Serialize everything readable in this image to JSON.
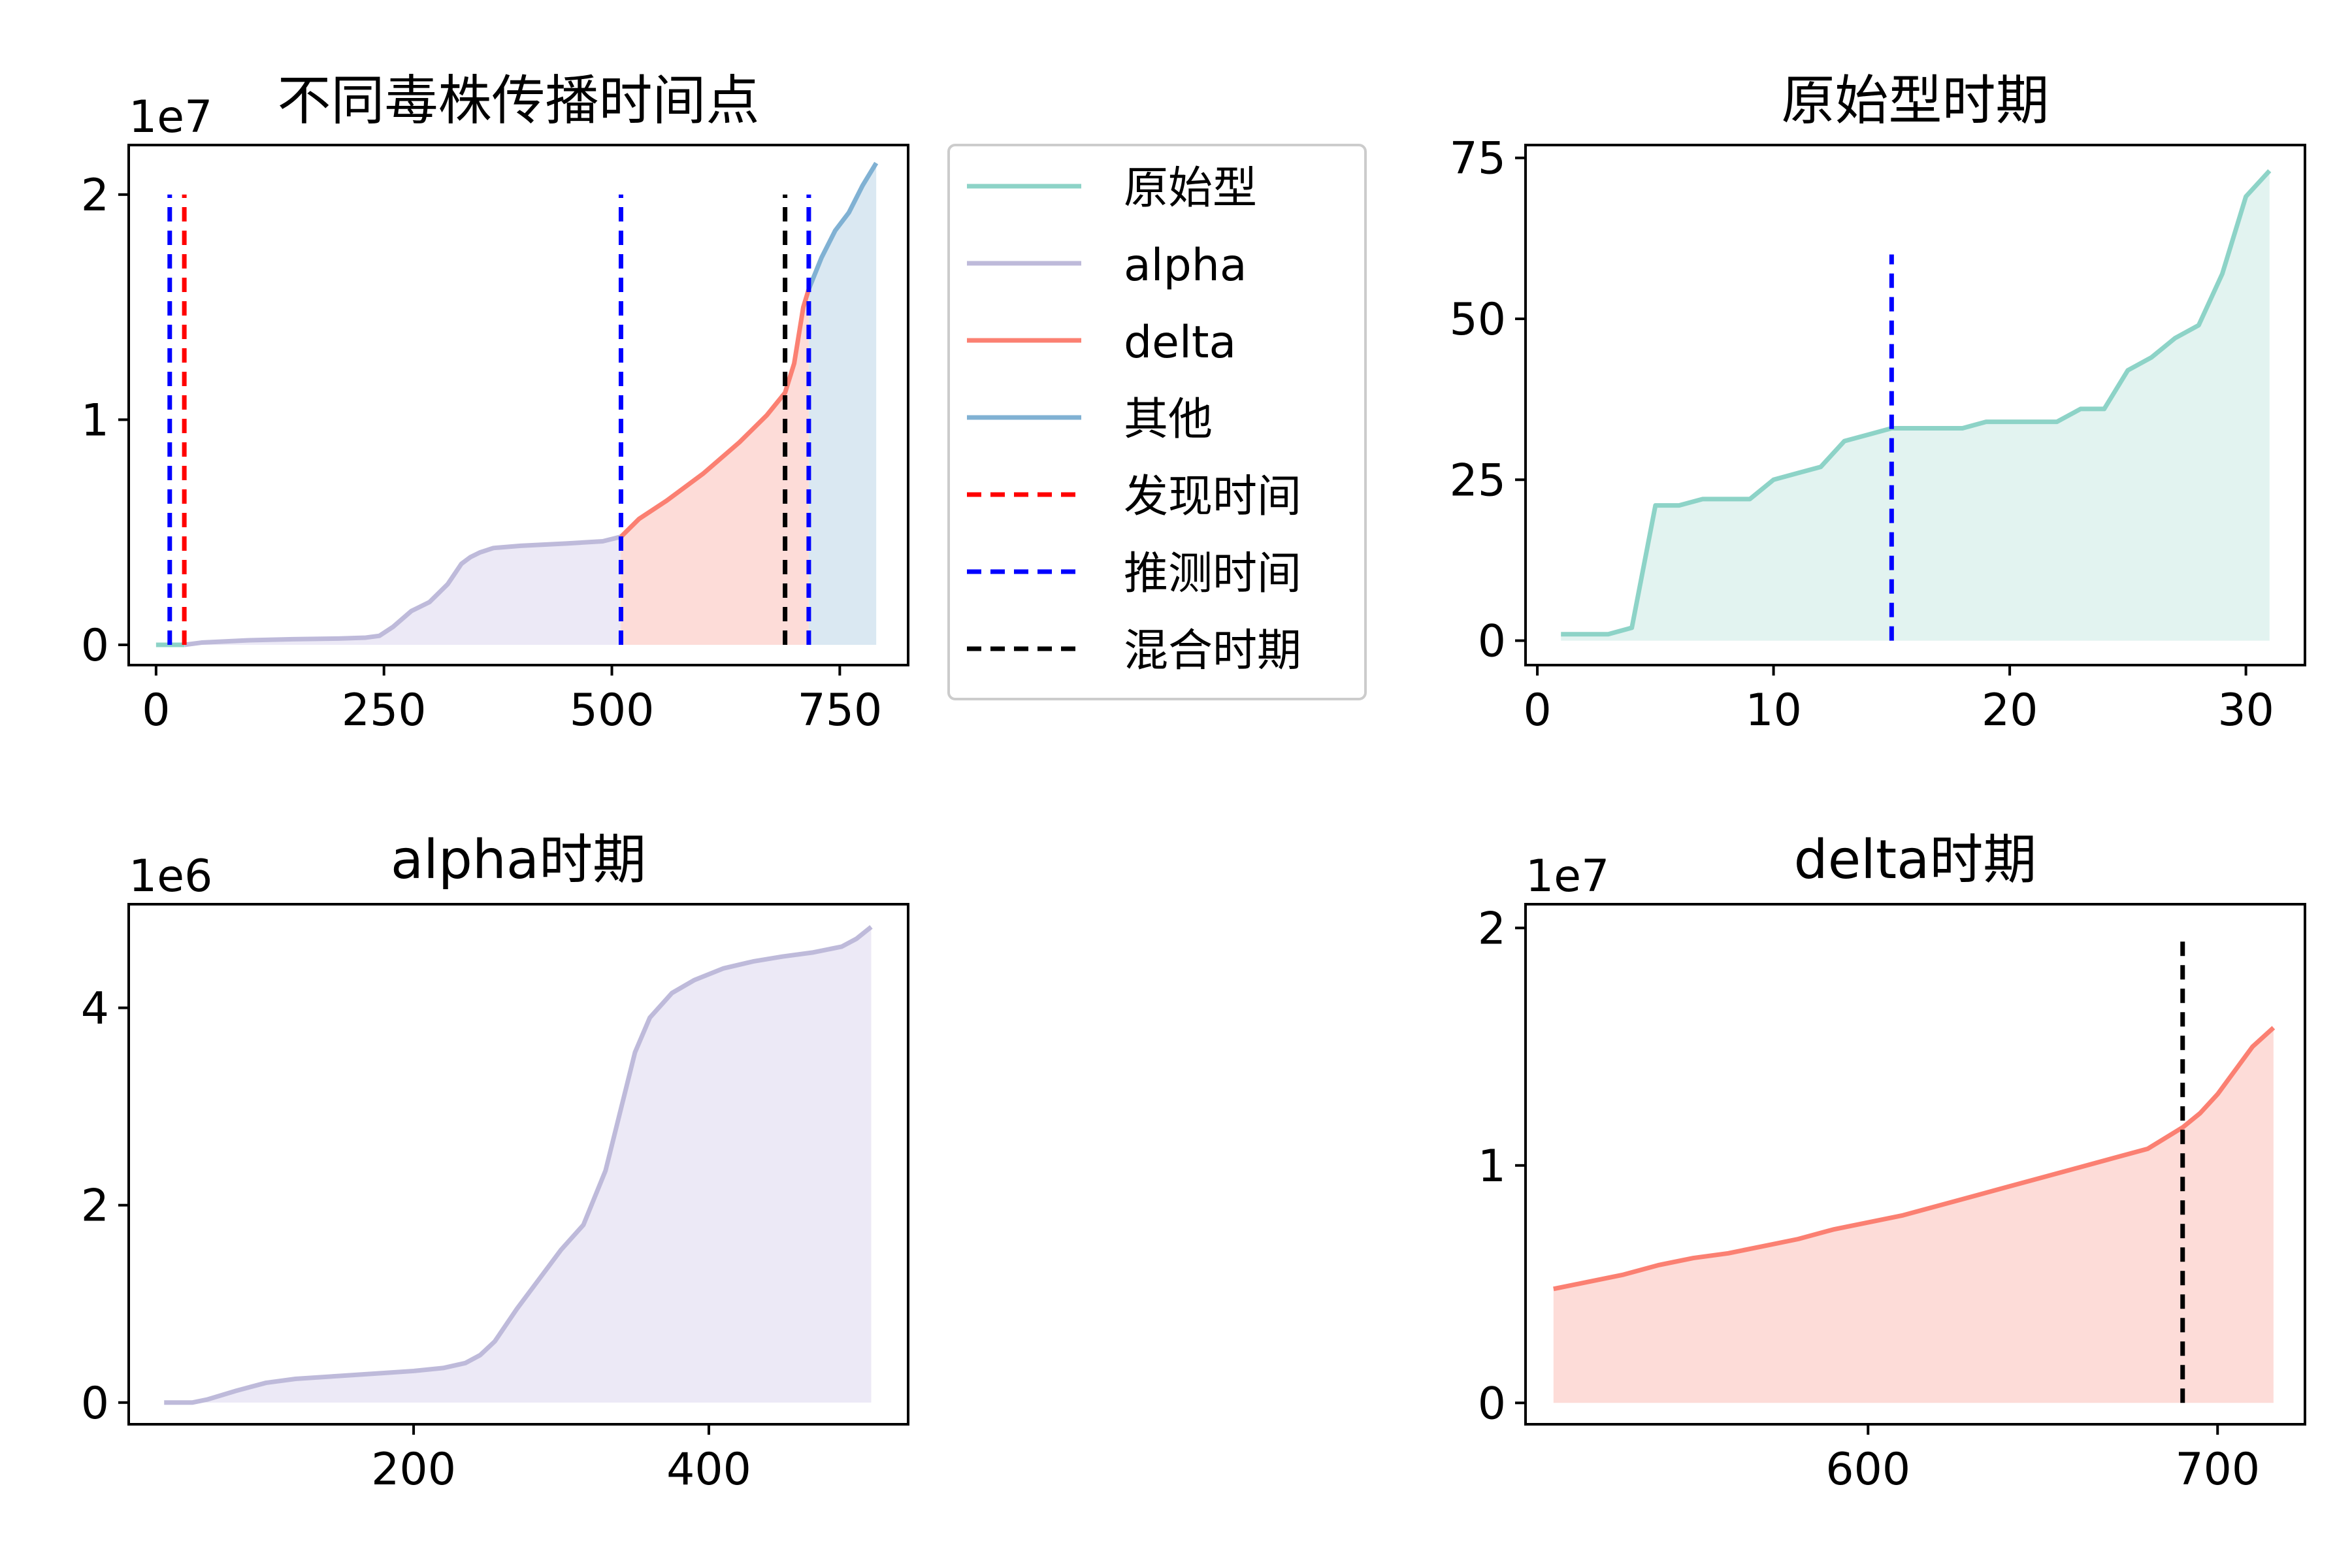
{
  "colors": {
    "original": "#8dd3c7",
    "alpha": "#bebada",
    "delta": "#fb8072",
    "other": "#80b1d3",
    "original_fill": "#e2f3f0",
    "alpha_fill": "#ece9f6",
    "delta_fill": "#fddcd8",
    "other_fill": "#dae8f2",
    "found": "#ff0000",
    "inferred": "#0000ff",
    "mixed": "#000000"
  },
  "legend": {
    "items": [
      {
        "label": "原始型",
        "style": "solid",
        "color": "#8dd3c7"
      },
      {
        "label": "alpha",
        "style": "solid",
        "color": "#bebada"
      },
      {
        "label": "delta",
        "style": "solid",
        "color": "#fb8072"
      },
      {
        "label": "其他",
        "style": "solid",
        "color": "#80b1d3"
      },
      {
        "label": "发现时间",
        "style": "dashed",
        "color": "#ff0000"
      },
      {
        "label": "推测时间",
        "style": "dashed",
        "color": "#0000ff"
      },
      {
        "label": "混合时期",
        "style": "dashed",
        "color": "#000000"
      }
    ]
  },
  "chart_data": [
    {
      "id": "overview",
      "type": "area",
      "title": "不同毒株传播时间点",
      "offset_label": "1e7",
      "xlim": [
        -30,
        825
      ],
      "ylim": [
        -0.09,
        2.22
      ],
      "x_ticks": [
        0,
        250,
        500,
        750
      ],
      "x_tick_labels": [
        "0",
        "250",
        "500",
        "750"
      ],
      "y_ticks": [
        0,
        1,
        2
      ],
      "y_tick_labels": [
        "0",
        "1",
        "2"
      ],
      "series": [
        {
          "name": "原始型",
          "color_key": "original",
          "fill_key": "original_fill",
          "x": [
            0,
            15,
            31
          ],
          "y": [
            0.0,
            0.0,
            0.0
          ]
        },
        {
          "name": "alpha",
          "color_key": "alpha",
          "fill_key": "alpha_fill",
          "x": [
            31,
            50,
            100,
            150,
            200,
            230,
            245,
            260,
            280,
            300,
            320,
            335,
            345,
            355,
            370,
            400,
            450,
            490,
            510
          ],
          "y": [
            0.0,
            0.01,
            0.02,
            0.025,
            0.028,
            0.032,
            0.04,
            0.08,
            0.15,
            0.19,
            0.27,
            0.36,
            0.39,
            0.41,
            0.43,
            0.44,
            0.45,
            0.46,
            0.48
          ]
        },
        {
          "name": "delta",
          "color_key": "delta",
          "fill_key": "delta_fill",
          "x": [
            510,
            530,
            560,
            600,
            640,
            670,
            690,
            700,
            710,
            716
          ],
          "y": [
            0.48,
            0.56,
            0.64,
            0.76,
            0.9,
            1.02,
            1.12,
            1.25,
            1.5,
            1.58
          ]
        },
        {
          "name": "其他",
          "color_key": "other",
          "fill_key": "other_fill",
          "x": [
            716,
            730,
            745,
            760,
            775,
            790
          ],
          "y": [
            1.58,
            1.72,
            1.84,
            1.92,
            2.04,
            2.14
          ]
        }
      ],
      "vlines": [
        {
          "x": 15,
          "ymin": 0,
          "ymax": 2.0,
          "color_key": "inferred"
        },
        {
          "x": 31,
          "ymin": 0,
          "ymax": 2.0,
          "color_key": "found"
        },
        {
          "x": 510,
          "ymin": 0,
          "ymax": 2.0,
          "color_key": "inferred"
        },
        {
          "x": 690,
          "ymin": 0,
          "ymax": 2.0,
          "color_key": "mixed"
        },
        {
          "x": 716,
          "ymin": 0,
          "ymax": 2.0,
          "color_key": "inferred"
        }
      ]
    },
    {
      "id": "original",
      "type": "area",
      "title": "原始型时期",
      "offset_label": "",
      "xlim": [
        -0.5,
        32.5
      ],
      "ylim": [
        -3.8,
        77
      ],
      "x_ticks": [
        0,
        10,
        20,
        30
      ],
      "x_tick_labels": [
        "0",
        "10",
        "20",
        "30"
      ],
      "y_ticks": [
        0,
        25,
        50,
        75
      ],
      "y_tick_labels": [
        "0",
        "25",
        "50",
        "75"
      ],
      "series": [
        {
          "name": "原始型",
          "color_key": "original",
          "fill_key": "original_fill",
          "x": [
            1,
            2,
            3,
            4,
            5,
            6,
            7,
            8,
            9,
            10,
            11,
            12,
            13,
            14,
            15,
            16,
            17,
            18,
            19,
            20,
            21,
            22,
            23,
            24,
            25,
            26,
            27,
            28,
            29,
            30,
            31
          ],
          "y": [
            1,
            1,
            1,
            2,
            21,
            21,
            22,
            22,
            22,
            25,
            26,
            27,
            31,
            32,
            33,
            33,
            33,
            33,
            34,
            34,
            34,
            34,
            36,
            36,
            42,
            44,
            47,
            49,
            57,
            69,
            73
          ]
        }
      ],
      "vlines": [
        {
          "x": 15,
          "ymin": 0,
          "ymax": 60,
          "color_key": "inferred"
        }
      ]
    },
    {
      "id": "alpha",
      "type": "area",
      "title": "alpha时期",
      "offset_label": "1e6",
      "xlim": [
        7,
        535
      ],
      "ylim": [
        -0.22,
        5.05
      ],
      "x_ticks": [
        200,
        400
      ],
      "x_tick_labels": [
        "200",
        "400"
      ],
      "y_ticks": [
        0,
        2,
        4
      ],
      "y_tick_labels": [
        "0",
        "2",
        "4"
      ],
      "series": [
        {
          "name": "alpha",
          "color_key": "alpha",
          "fill_key": "alpha_fill",
          "x": [
            31,
            50,
            60,
            80,
            100,
            120,
            150,
            180,
            200,
            220,
            235,
            245,
            255,
            270,
            285,
            300,
            315,
            330,
            340,
            350,
            360,
            375,
            390,
            410,
            430,
            450,
            470,
            490,
            500,
            510
          ],
          "y": [
            0.0,
            0.0,
            0.03,
            0.12,
            0.2,
            0.24,
            0.27,
            0.3,
            0.32,
            0.35,
            0.4,
            0.48,
            0.62,
            0.95,
            1.25,
            1.55,
            1.8,
            2.35,
            2.95,
            3.55,
            3.9,
            4.15,
            4.28,
            4.4,
            4.47,
            4.52,
            4.56,
            4.62,
            4.7,
            4.82
          ]
        }
      ],
      "vlines": []
    },
    {
      "id": "delta",
      "type": "area",
      "title": "delta时期",
      "offset_label": "1e7",
      "xlim": [
        502,
        725
      ],
      "ylim": [
        -0.09,
        2.1
      ],
      "x_ticks": [
        600,
        700
      ],
      "x_tick_labels": [
        "600",
        "700"
      ],
      "y_ticks": [
        0,
        1,
        2
      ],
      "y_tick_labels": [
        "0",
        "1",
        "2"
      ],
      "series": [
        {
          "name": "delta",
          "color_key": "delta",
          "fill_key": "delta_fill",
          "x": [
            510,
            520,
            530,
            540,
            550,
            560,
            570,
            580,
            590,
            600,
            610,
            620,
            630,
            640,
            650,
            660,
            670,
            680,
            690,
            695,
            700,
            703,
            706,
            710,
            716
          ],
          "y": [
            0.48,
            0.51,
            0.54,
            0.58,
            0.61,
            0.63,
            0.66,
            0.69,
            0.73,
            0.76,
            0.79,
            0.83,
            0.87,
            0.91,
            0.95,
            0.99,
            1.03,
            1.07,
            1.16,
            1.22,
            1.3,
            1.36,
            1.42,
            1.5,
            1.58
          ]
        }
      ],
      "vlines": [
        {
          "x": 690,
          "ymin": 0,
          "ymax": 1.95,
          "color_key": "mixed"
        }
      ]
    }
  ]
}
